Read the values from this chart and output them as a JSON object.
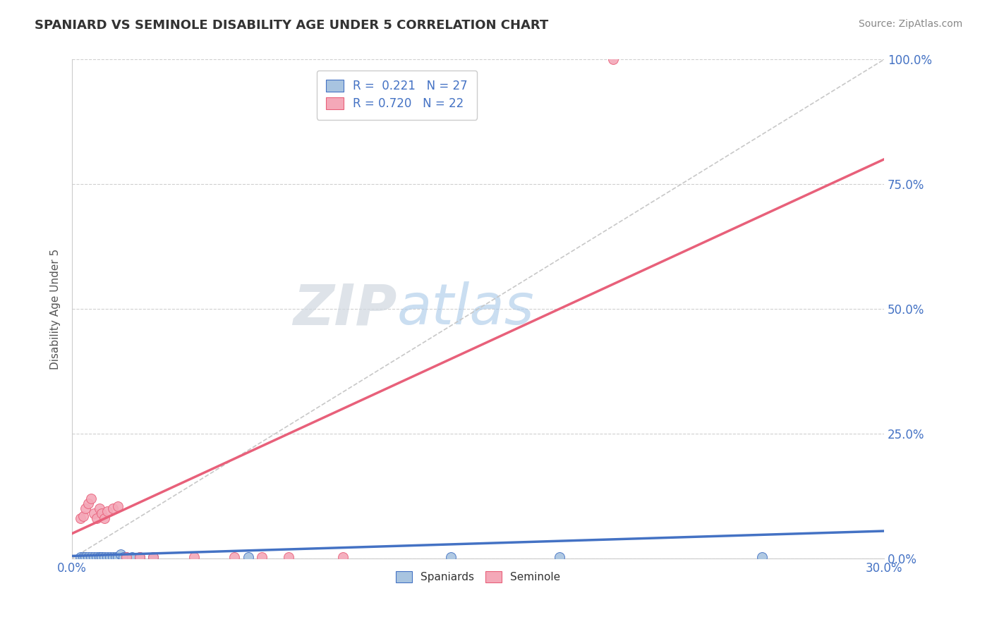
{
  "title": "SPANIARD VS SEMINOLE DISABILITY AGE UNDER 5 CORRELATION CHART",
  "source": "Source: ZipAtlas.com",
  "ylabel": "Disability Age Under 5",
  "xlim": [
    0.0,
    0.3
  ],
  "ylim": [
    0.0,
    1.0
  ],
  "xticks": [
    0.0,
    0.05,
    0.1,
    0.15,
    0.2,
    0.25,
    0.3
  ],
  "xticklabels": [
    "0.0%",
    "",
    "",
    "",
    "",
    "",
    "30.0%"
  ],
  "yticks": [
    0.0,
    0.25,
    0.5,
    0.75,
    1.0
  ],
  "yticklabels_right": [
    "0.0%",
    "25.0%",
    "50.0%",
    "75.0%",
    "100.0%"
  ],
  "legend_r1": "R =  0.221   N = 27",
  "legend_r2": "R = 0.720   N = 22",
  "color_spaniard": "#a8c4e0",
  "color_seminole": "#f4a8b8",
  "color_trend_spaniard": "#4472c4",
  "color_trend_seminole": "#e8607a",
  "color_diagonal": "#c8c8c8",
  "watermark_zip": "ZIP",
  "watermark_atlas": "atlas",
  "background_color": "#ffffff",
  "spaniard_x": [
    0.003,
    0.004,
    0.005,
    0.006,
    0.007,
    0.008,
    0.009,
    0.01,
    0.01,
    0.011,
    0.011,
    0.012,
    0.013,
    0.014,
    0.015,
    0.016,
    0.017,
    0.018,
    0.019,
    0.02,
    0.022,
    0.025,
    0.03,
    0.065,
    0.14,
    0.18,
    0.255
  ],
  "spaniard_y": [
    0.003,
    0.003,
    0.003,
    0.003,
    0.003,
    0.003,
    0.003,
    0.003,
    0.003,
    0.003,
    0.003,
    0.003,
    0.003,
    0.003,
    0.003,
    0.003,
    0.003,
    0.008,
    0.003,
    0.003,
    0.003,
    0.003,
    0.003,
    0.003,
    0.003,
    0.003,
    0.003
  ],
  "seminole_x": [
    0.003,
    0.004,
    0.005,
    0.006,
    0.007,
    0.008,
    0.009,
    0.01,
    0.011,
    0.012,
    0.013,
    0.015,
    0.017,
    0.02,
    0.025,
    0.03,
    0.045,
    0.06,
    0.07,
    0.08,
    0.1,
    0.2
  ],
  "seminole_y": [
    0.08,
    0.085,
    0.1,
    0.11,
    0.12,
    0.09,
    0.08,
    0.1,
    0.09,
    0.08,
    0.095,
    0.1,
    0.105,
    0.003,
    0.003,
    0.003,
    0.003,
    0.003,
    0.003,
    0.003,
    0.003,
    1.0
  ],
  "trend_spaniard_x0": 0.0,
  "trend_spaniard_y0": 0.005,
  "trend_spaniard_x1": 0.3,
  "trend_spaniard_y1": 0.055,
  "trend_seminole_x0": 0.0,
  "trend_seminole_y0": 0.05,
  "trend_seminole_x1": 0.2,
  "trend_seminole_y1": 0.55
}
